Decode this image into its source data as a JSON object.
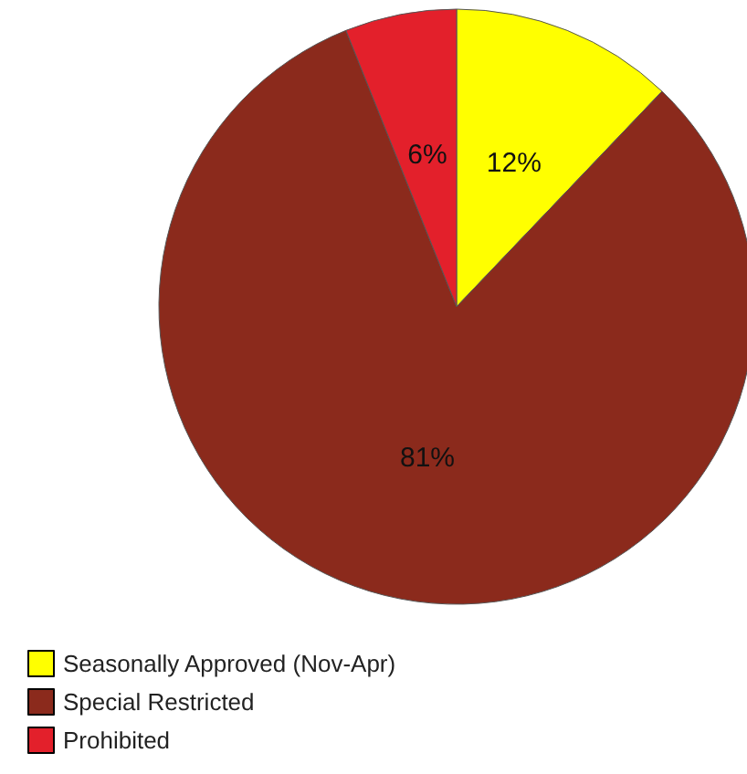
{
  "chart_data": {
    "type": "pie",
    "categories": [
      "Seasonally Approved (Nov-Apr)",
      "Special Restricted",
      "Prohibited"
    ],
    "values": [
      12,
      81,
      6
    ],
    "value_labels": [
      "12%",
      "81%",
      "6%"
    ],
    "colors": [
      "#ffff00",
      "#8b2a1c",
      "#e3202b"
    ],
    "legend": "bottom left"
  }
}
